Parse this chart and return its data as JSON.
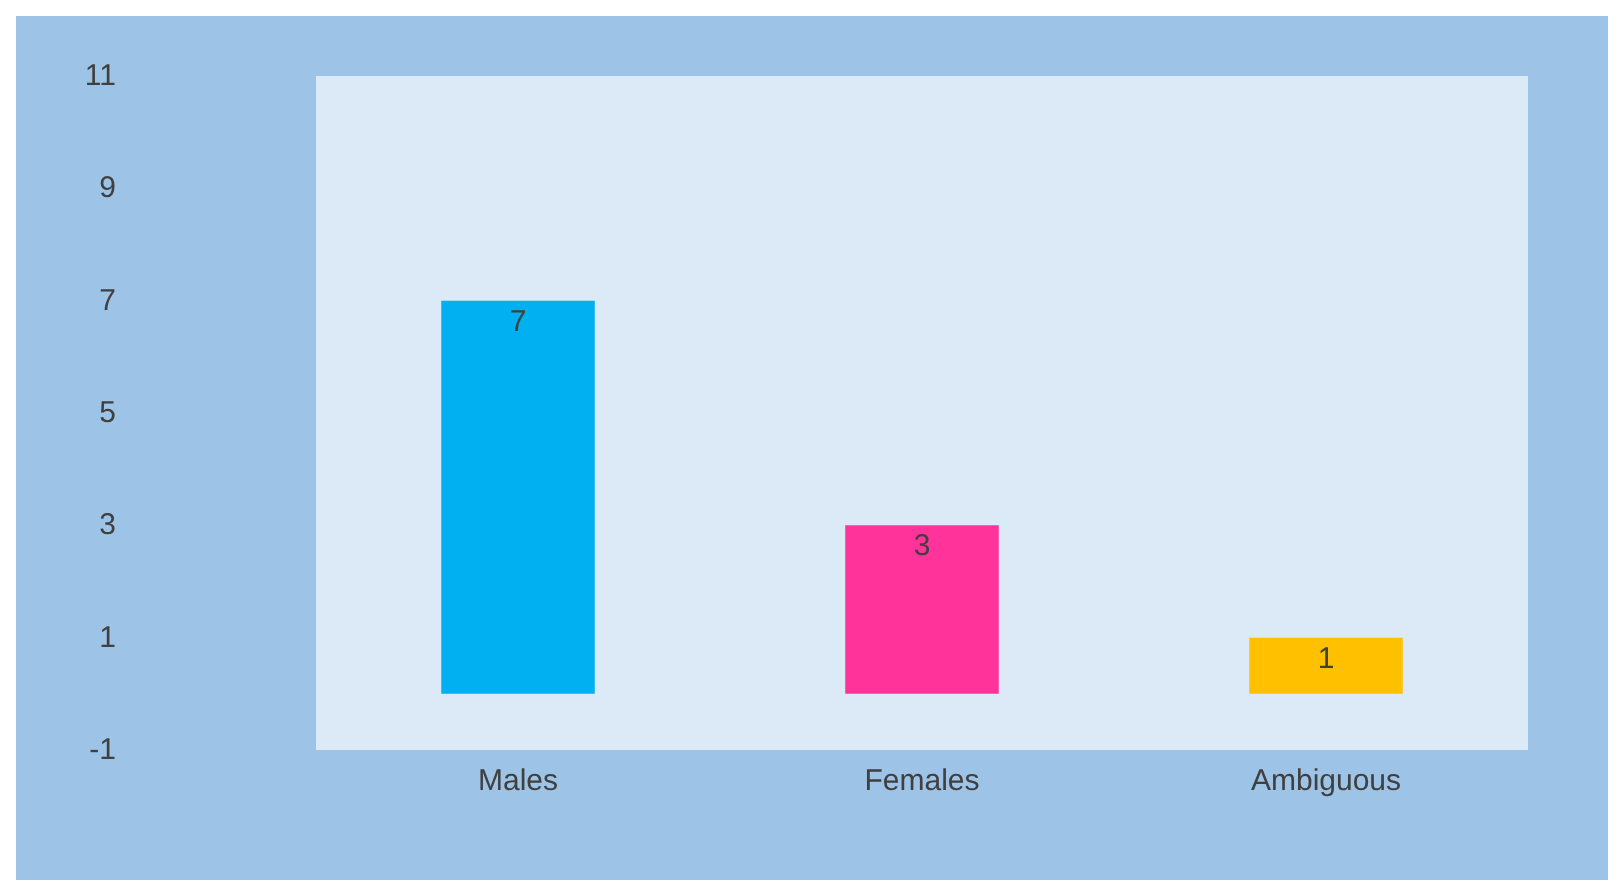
{
  "chart_data": {
    "type": "bar",
    "categories": [
      "Males",
      "Females",
      "Ambiguous"
    ],
    "values": [
      7,
      3,
      1
    ],
    "colors": [
      "#00b0f0",
      "#ff3399",
      "#ffc000"
    ],
    "ylim": [
      -1,
      11
    ],
    "yticks": [
      -1,
      1,
      3,
      5,
      7,
      9,
      11
    ],
    "grid": false,
    "data_labels": true
  }
}
